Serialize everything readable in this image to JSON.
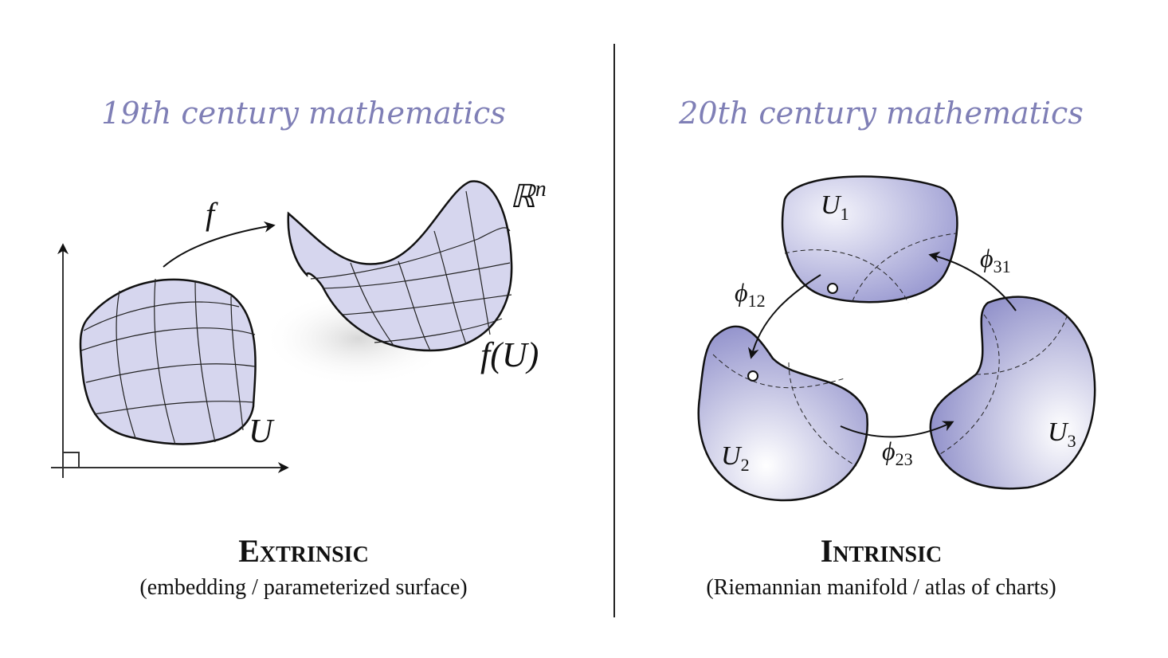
{
  "left": {
    "title": "19th century mathematics",
    "heading": "Extrinsic",
    "subtitle": "(embedding / parameterized surface)",
    "labels": {
      "map": "f",
      "domain": "U",
      "space_main": "ℝ",
      "space_sup": "n",
      "image": "f(U)"
    }
  },
  "right": {
    "title": "20th century mathematics",
    "heading": "Intrinsic",
    "subtitle": "(Riemannian manifold / atlas of charts)",
    "charts": [
      {
        "main": "U",
        "sub": "1"
      },
      {
        "main": "U",
        "sub": "2"
      },
      {
        "main": "U",
        "sub": "3"
      }
    ],
    "transitions": [
      {
        "main": "ϕ",
        "sub": "12"
      },
      {
        "main": "ϕ",
        "sub": "31"
      },
      {
        "main": "ϕ",
        "sub": "23"
      }
    ]
  },
  "colors": {
    "title": "#7f7fb6",
    "surface_fill": "#d6d6ee",
    "chart_dark": "#7c7cc0"
  }
}
